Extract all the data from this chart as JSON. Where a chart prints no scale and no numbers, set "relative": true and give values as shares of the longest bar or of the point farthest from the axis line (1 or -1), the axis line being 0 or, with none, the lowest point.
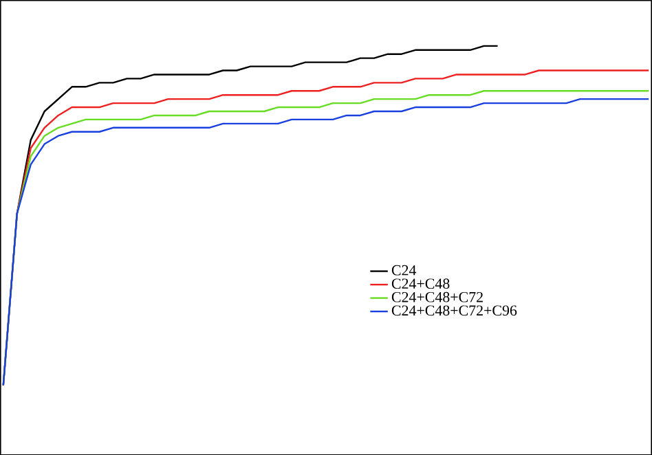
{
  "chart_data": {
    "type": "line",
    "relative": true,
    "legend": "right",
    "marker": "none",
    "line_style": "solid",
    "categories": [
      null,
      null,
      null,
      null,
      null,
      null,
      null,
      null,
      null,
      null,
      null,
      null,
      null,
      null,
      null,
      null,
      null,
      null,
      null,
      null,
      null,
      null,
      null,
      null,
      null,
      null,
      null,
      null,
      null,
      null,
      null,
      null,
      null,
      null,
      null,
      null,
      null,
      null,
      null,
      null,
      null,
      null,
      null,
      null,
      null,
      null,
      null,
      null
    ],
    "series": [
      {
        "name": "C24",
        "color": "#000000",
        "values": [
          0.17,
          0.59,
          0.77,
          0.84,
          0.87,
          0.9,
          0.9,
          0.91,
          0.91,
          0.92,
          0.92,
          0.93,
          0.93,
          0.93,
          0.93,
          0.93,
          0.94,
          0.94,
          0.95,
          0.95,
          0.95,
          0.95,
          0.96,
          0.96,
          0.96,
          0.96,
          0.97,
          0.97,
          0.98,
          0.98,
          0.99,
          0.99,
          0.99,
          0.99,
          0.99,
          1.0,
          1.0,
          null,
          null,
          null,
          null,
          null,
          null,
          null,
          null,
          null,
          null,
          null
        ]
      },
      {
        "name": "C24+C48",
        "color": "#ee2020",
        "values": [
          0.17,
          0.59,
          0.75,
          0.8,
          0.83,
          0.85,
          0.85,
          0.85,
          0.86,
          0.86,
          0.86,
          0.86,
          0.87,
          0.87,
          0.87,
          0.87,
          0.88,
          0.88,
          0.88,
          0.88,
          0.88,
          0.89,
          0.89,
          0.89,
          0.9,
          0.9,
          0.9,
          0.91,
          0.91,
          0.91,
          0.92,
          0.92,
          0.92,
          0.93,
          0.93,
          0.93,
          0.93,
          0.93,
          0.93,
          0.94,
          0.94,
          0.94,
          0.94,
          0.94,
          0.94,
          0.94,
          0.94,
          0.94
        ]
      },
      {
        "name": "C24+C48+C72",
        "color": "#66dd22",
        "values": [
          0.17,
          0.59,
          0.73,
          0.78,
          0.8,
          0.81,
          0.82,
          0.82,
          0.82,
          0.82,
          0.82,
          0.83,
          0.83,
          0.83,
          0.83,
          0.84,
          0.84,
          0.84,
          0.84,
          0.84,
          0.85,
          0.85,
          0.85,
          0.85,
          0.86,
          0.86,
          0.86,
          0.87,
          0.87,
          0.87,
          0.87,
          0.88,
          0.88,
          0.88,
          0.88,
          0.89,
          0.89,
          0.89,
          0.89,
          0.89,
          0.89,
          0.89,
          0.89,
          0.89,
          0.89,
          0.89,
          0.89,
          0.89
        ]
      },
      {
        "name": "C24+C48+C72+C96",
        "color": "#1a3fe0",
        "values": [
          0.17,
          0.59,
          0.71,
          0.76,
          0.78,
          0.79,
          0.79,
          0.79,
          0.8,
          0.8,
          0.8,
          0.8,
          0.8,
          0.8,
          0.8,
          0.8,
          0.81,
          0.81,
          0.81,
          0.81,
          0.81,
          0.82,
          0.82,
          0.82,
          0.82,
          0.83,
          0.83,
          0.84,
          0.84,
          0.84,
          0.85,
          0.85,
          0.85,
          0.85,
          0.85,
          0.86,
          0.86,
          0.86,
          0.86,
          0.86,
          0.86,
          0.86,
          0.87,
          0.87,
          0.87,
          0.87,
          0.87,
          0.87
        ]
      }
    ]
  }
}
